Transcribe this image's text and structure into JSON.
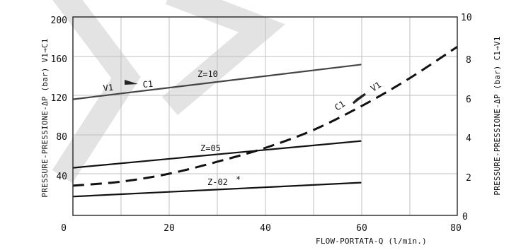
{
  "chart_data": {
    "type": "line",
    "xlabel": "FLOW-PORTATA-Q (l/min.)",
    "ylabel_left": "PRESSURE-PRESSIONE-ΔP (bar) V1→C1",
    "ylabel_right": "PRESSURE-PRESSIONE-ΔP (bar) C1→V1",
    "x_ticks": [
      "0",
      "20",
      "40",
      "60",
      "80"
    ],
    "y_left_ticks": [
      "40",
      "80",
      "120",
      "160",
      "200"
    ],
    "y_right_ticks": [
      "0",
      "2",
      "4",
      "6",
      "8",
      "10"
    ],
    "xlim": [
      0,
      80
    ],
    "ylim_left": [
      0,
      200
    ],
    "ylim_right": [
      0,
      10
    ],
    "grid": true,
    "series": [
      {
        "name": "Z=10",
        "axis": "left",
        "style": "solid",
        "color": "#444444",
        "x": [
          0,
          60
        ],
        "y": [
          117,
          152
        ]
      },
      {
        "name": "Z=05",
        "axis": "left",
        "style": "solid",
        "color": "#111111",
        "x": [
          0,
          60
        ],
        "y": [
          48,
          75
        ]
      },
      {
        "name": "Z=02",
        "axis": "left",
        "style": "solid",
        "color": "#111111",
        "x": [
          0,
          60
        ],
        "y": [
          19,
          33
        ]
      },
      {
        "name": "C1 → V1",
        "axis": "right",
        "style": "dashed",
        "color": "#111111",
        "x": [
          0,
          10,
          20,
          30,
          40,
          50,
          60,
          70,
          80
        ],
        "y": [
          1.5,
          1.7,
          2.1,
          2.7,
          3.4,
          4.3,
          5.5,
          6.9,
          8.5
        ]
      }
    ],
    "annotations": [
      {
        "text": "V1",
        "near": "Z=10 line, left"
      },
      {
        "text": "C1",
        "near": "Z=10 line, left"
      },
      {
        "text": "Z=10",
        "near": "Z=10 line"
      },
      {
        "text": "Z=05",
        "near": "Z=05 line"
      },
      {
        "text": "Z-02",
        "near": "Z=02 line"
      },
      {
        "text": "*",
        "near": "Z=02 label"
      },
      {
        "text": "C1",
        "near": "dashed curve"
      },
      {
        "text": "V1",
        "near": "dashed curve"
      }
    ]
  },
  "colors": {
    "grid": "#bfbfbf",
    "frame": "#333333",
    "watermark": "#dddddd"
  }
}
